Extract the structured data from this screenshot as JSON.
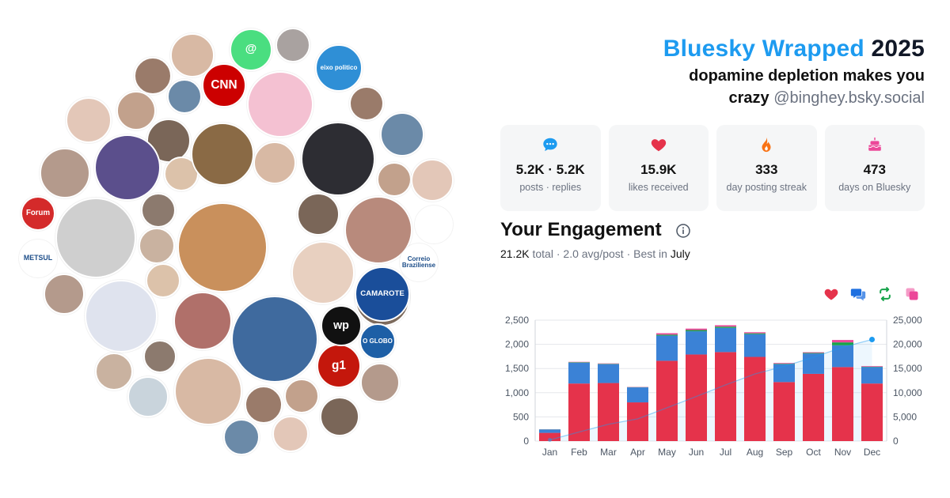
{
  "header": {
    "title_accent": "Bluesky Wrapped",
    "title_year": "2025",
    "subtitle_line1": "dopamine depletion makes you",
    "subtitle_line2": "crazy",
    "handle": "@binghey.bsky.social"
  },
  "stats": [
    {
      "icon": "speech-bubble-icon",
      "value": "5.2K · 5.2K",
      "label": "posts · replies",
      "color": "#1d9bf0"
    },
    {
      "icon": "heart-icon",
      "value": "15.9K",
      "label": "likes received",
      "color": "#e5334b"
    },
    {
      "icon": "flame-icon",
      "value": "333",
      "label": "day posting streak",
      "color": "#f97316"
    },
    {
      "icon": "cake-icon",
      "value": "473",
      "label": "days on Bluesky",
      "color": "#ec4899"
    }
  ],
  "engagement": {
    "title": "Your Engagement",
    "total": "21.2K",
    "total_word": "total",
    "avg": "2.0 avg/post",
    "best_prefix": "Best in",
    "best_month": "July"
  },
  "legend": [
    {
      "icon": "heart-icon",
      "color": "#e5334b"
    },
    {
      "icon": "reply-icon",
      "color": "#1d6fe0"
    },
    {
      "icon": "repost-icon",
      "color": "#16a34a"
    },
    {
      "icon": "quote-icon",
      "color": "#ec4899"
    }
  ],
  "chart_data": {
    "type": "bar",
    "stacked": true,
    "categories": [
      "Jan",
      "Feb",
      "Mar",
      "Apr",
      "May",
      "Jun",
      "Jul",
      "Aug",
      "Sep",
      "Oct",
      "Nov",
      "Dec"
    ],
    "series": [
      {
        "values": [
          170,
          1190,
          1200,
          800,
          1660,
          1790,
          1840,
          1740,
          1220,
          1390,
          1530,
          1190
        ],
        "color": "#e5334b"
      },
      {
        "values": [
          70,
          430,
          390,
          310,
          520,
          480,
          500,
          470,
          370,
          420,
          450,
          340
        ],
        "color": "#3b82d6"
      },
      {
        "values": [
          3,
          10,
          8,
          5,
          20,
          25,
          25,
          18,
          10,
          12,
          60,
          8
        ],
        "color": "#16a34a"
      },
      {
        "values": [
          2,
          8,
          8,
          5,
          30,
          30,
          30,
          22,
          14,
          14,
          50,
          12
        ],
        "color": "#ec4899"
      }
    ],
    "cumulative": [
      250,
      1880,
      3480,
      4600,
      6880,
      9220,
      11610,
      13860,
      15470,
      17310,
      19410,
      21000
    ],
    "cumulative_color": "#1d9bf0",
    "ylim_left": [
      0,
      2500
    ],
    "yticks_left": [
      "0",
      "500",
      "1,000",
      "1,500",
      "2,000",
      "2,500"
    ],
    "ylim_right": [
      0,
      25000
    ],
    "yticks_right": [
      "0",
      "5,000",
      "10,000",
      "15,000",
      "20,000",
      "25,000"
    ],
    "grid": true
  },
  "bubbles": [
    {
      "name": "avatar-santa-cat",
      "color": "#c9905c",
      "label": ""
    },
    {
      "name": "avatar-hoodie-man",
      "color": "#3f6a9e",
      "label": ""
    },
    {
      "name": "avatar-man-blond",
      "color": "#cfcfcf",
      "label": ""
    },
    {
      "name": "avatar-girl-anime-dark",
      "color": "#5b4f8c",
      "label": ""
    },
    {
      "name": "avatar-black-cat-pink",
      "color": "#f4c1d2",
      "label": ""
    },
    {
      "name": "avatar-hoodie-woman",
      "color": "#2d2d33",
      "label": ""
    },
    {
      "name": "avatar-man-hand",
      "color": "#8a6a45",
      "label": ""
    },
    {
      "name": "avatar-girl-portrait",
      "color": "#e8d0c0",
      "label": ""
    },
    {
      "name": "avatar-cartoon-girl",
      "color": "#8e6f86",
      "label": ""
    },
    {
      "name": "avatar-anime-santa-girl",
      "color": "#b0706a",
      "label": ""
    },
    {
      "name": "avatar-kpop-man",
      "color": "#b88a7c",
      "label": ""
    },
    {
      "name": "avatar-woman-red",
      "color": "#c08479",
      "label": ""
    },
    {
      "name": "avatar-anime-girl-light",
      "color": "#dfe3ee",
      "label": ""
    },
    {
      "name": "avatar-young-man",
      "color": "#7d6b5d",
      "label": ""
    },
    {
      "name": "logo-camarote",
      "color": "#1a4e9a",
      "label": "CAMAROTE"
    },
    {
      "name": "logo-cnn-brasil",
      "color": "#cc0000",
      "label": "CNN"
    },
    {
      "name": "logo-eixo-politico",
      "color": "#2f8fd6",
      "label": "eixo politico"
    },
    {
      "name": "logo-g1",
      "color": "#c4170c",
      "label": "g1"
    },
    {
      "name": "logo-wp",
      "color": "#111111",
      "label": "wp"
    },
    {
      "name": "logo-o-globo",
      "color": "#1d5fa6",
      "label": "O GLOBO"
    },
    {
      "name": "logo-forum",
      "color": "#d42a2a",
      "label": "Forum"
    },
    {
      "name": "logo-metsul",
      "color": "#ffffff",
      "label": "METSUL"
    },
    {
      "name": "logo-correio",
      "color": "#ffffff",
      "label": "Correio Braziliense"
    },
    {
      "name": "icon-at-sign",
      "color": "#4ade80",
      "label": "@"
    },
    {
      "name": "avatar-duck",
      "color": "#ffffff",
      "label": ""
    },
    {
      "name": "avatar-black-cat",
      "color": "#c9d4dc",
      "label": ""
    },
    {
      "name": "avatar-misc",
      "color": "#a9a2a0",
      "label": ""
    }
  ]
}
